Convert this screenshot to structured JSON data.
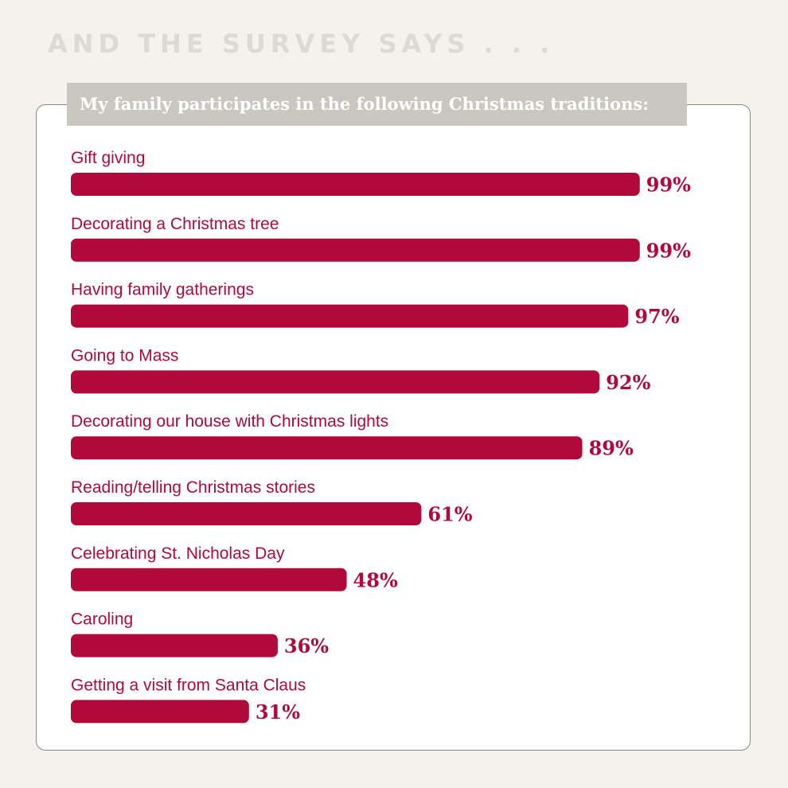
{
  "headline": "AND THE SURVEY SAYS . . .",
  "colors": {
    "bar": "#b0093a",
    "background": "#f3f2ec",
    "subtitle_band": "#c8c8c0",
    "headline": "#dcdad2"
  },
  "chart_data": {
    "type": "bar",
    "orientation": "horizontal",
    "title": "My family participates in the following Christmas traditions:",
    "categories": [
      "Gift giving",
      "Decorating a Christmas tree",
      "Having family gatherings",
      "Going to Mass",
      "Decorating our house with Christmas lights",
      "Reading/telling Christmas stories",
      "Celebrating St. Nicholas Day",
      "Caroling",
      "Getting a visit from Santa Claus"
    ],
    "values": [
      99,
      99,
      97,
      92,
      89,
      61,
      48,
      36,
      31
    ],
    "value_labels": [
      "99%",
      "99%",
      "97%",
      "92%",
      "89%",
      "61%",
      "48%",
      "36%",
      "31%"
    ],
    "xlim": [
      0,
      100
    ],
    "unit": "%",
    "grid": false,
    "legend": false
  }
}
